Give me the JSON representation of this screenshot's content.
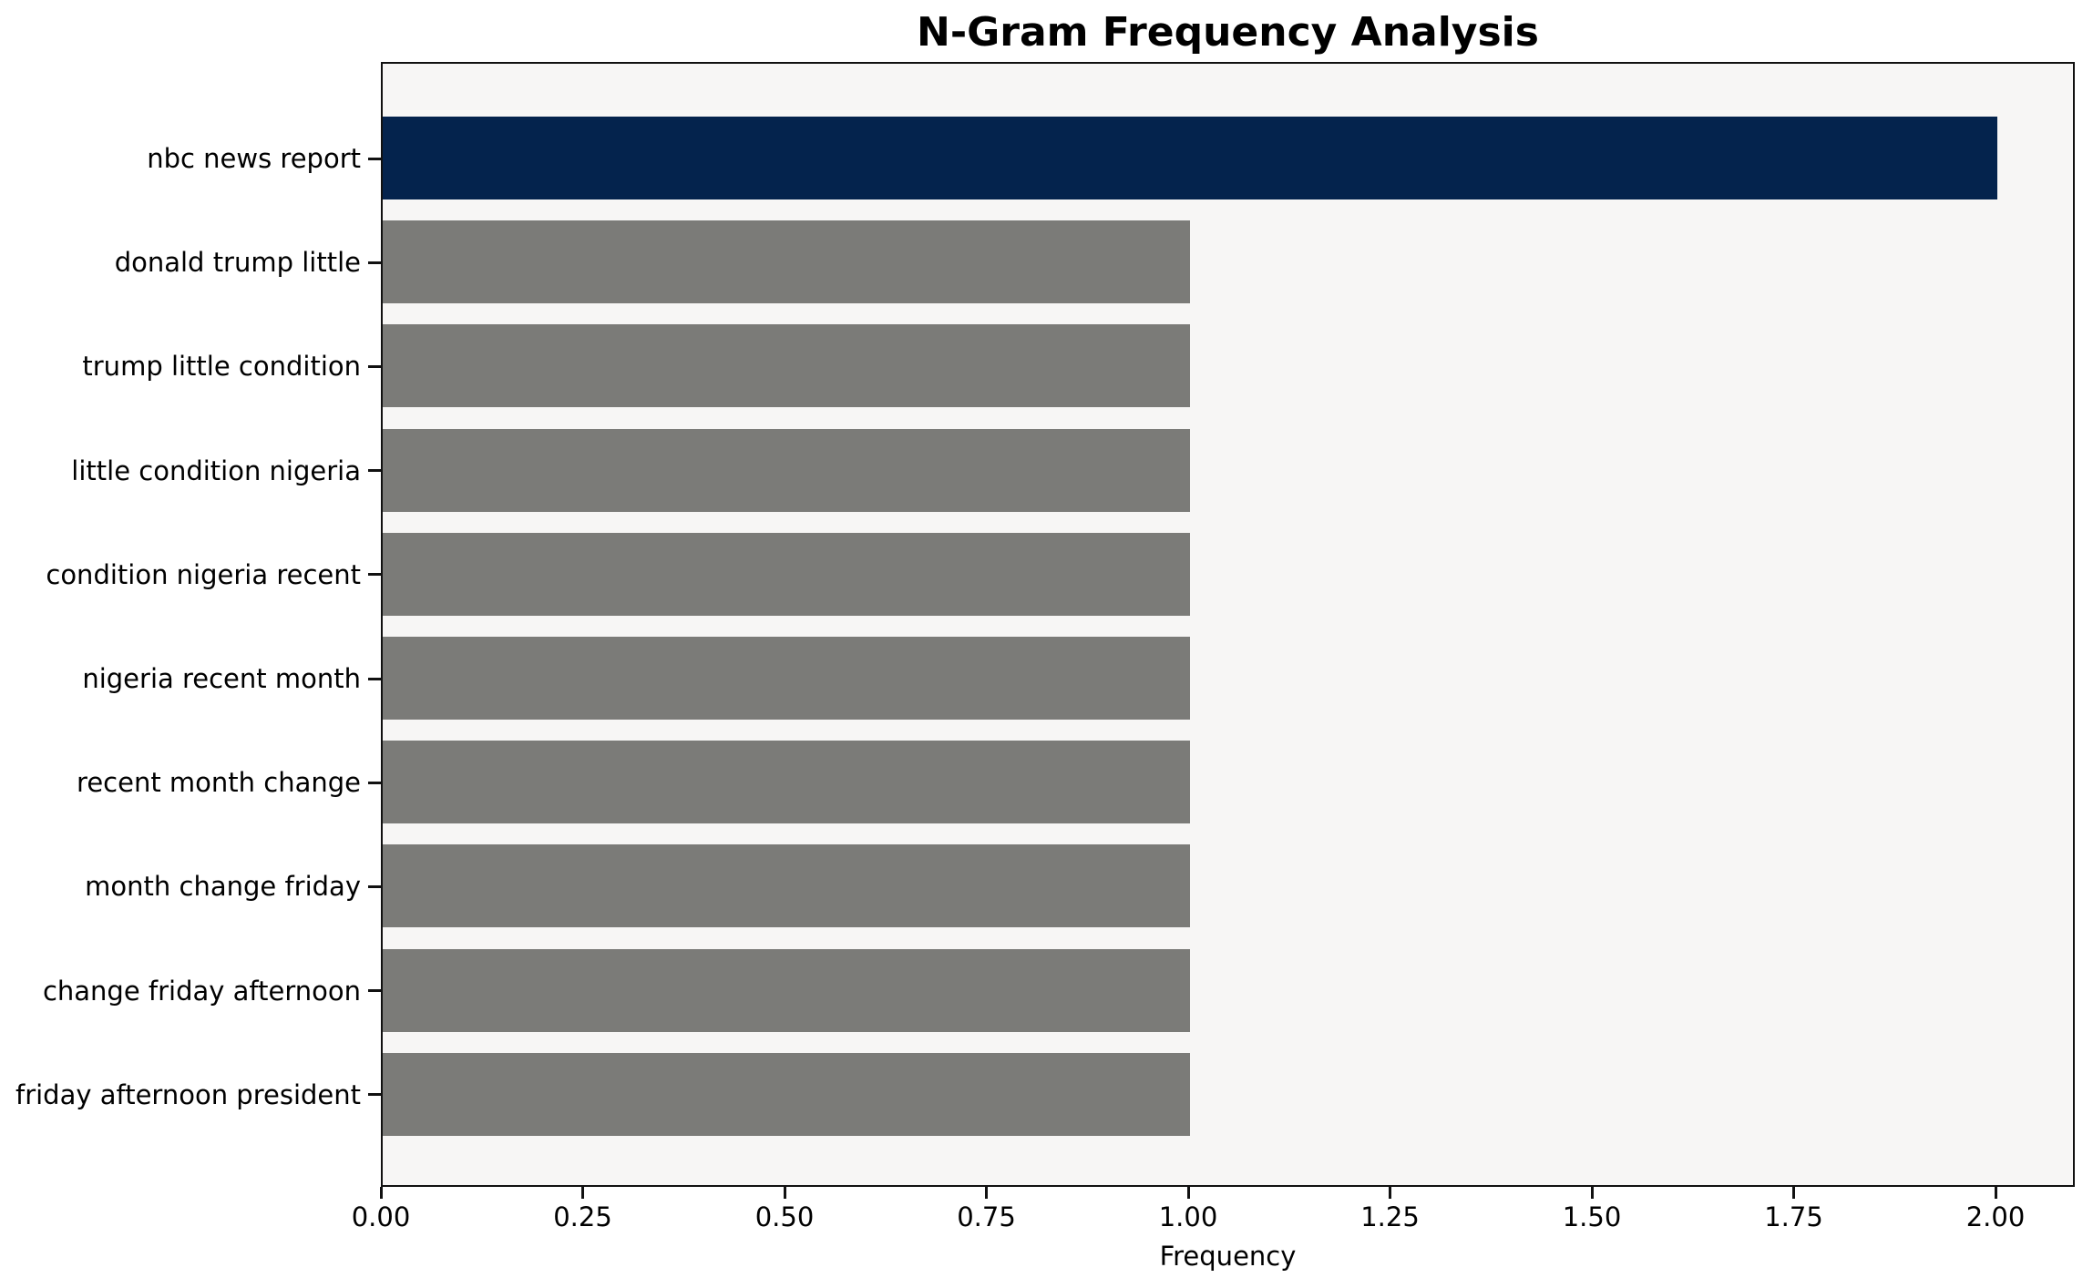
{
  "chart_data": {
    "type": "bar",
    "orientation": "horizontal",
    "title": "N-Gram Frequency Analysis",
    "xlabel": "Frequency",
    "ylabel": "",
    "categories": [
      "nbc news report",
      "donald trump little",
      "trump little condition",
      "little condition nigeria",
      "condition nigeria recent",
      "nigeria recent month",
      "recent month change",
      "month change friday",
      "change friday afternoon",
      "friday afternoon president"
    ],
    "values": [
      2.0,
      1.0,
      1.0,
      1.0,
      1.0,
      1.0,
      1.0,
      1.0,
      1.0,
      1.0
    ],
    "highlight_index": 0,
    "xticks": [
      0.0,
      0.25,
      0.5,
      0.75,
      1.0,
      1.25,
      1.5,
      1.75,
      2.0
    ],
    "xtick_labels": [
      "0.00",
      "0.25",
      "0.50",
      "0.75",
      "1.00",
      "1.25",
      "1.50",
      "1.75",
      "2.00"
    ],
    "xlim": [
      0.0,
      2.097
    ],
    "grid": false,
    "legend": null,
    "colors": {
      "highlight_bar": "#04234d",
      "default_bar": "#7b7b78",
      "plot_background": "#f7f6f5",
      "frame": "#111111",
      "text": "#000000",
      "page_background": "#ffffff"
    }
  }
}
